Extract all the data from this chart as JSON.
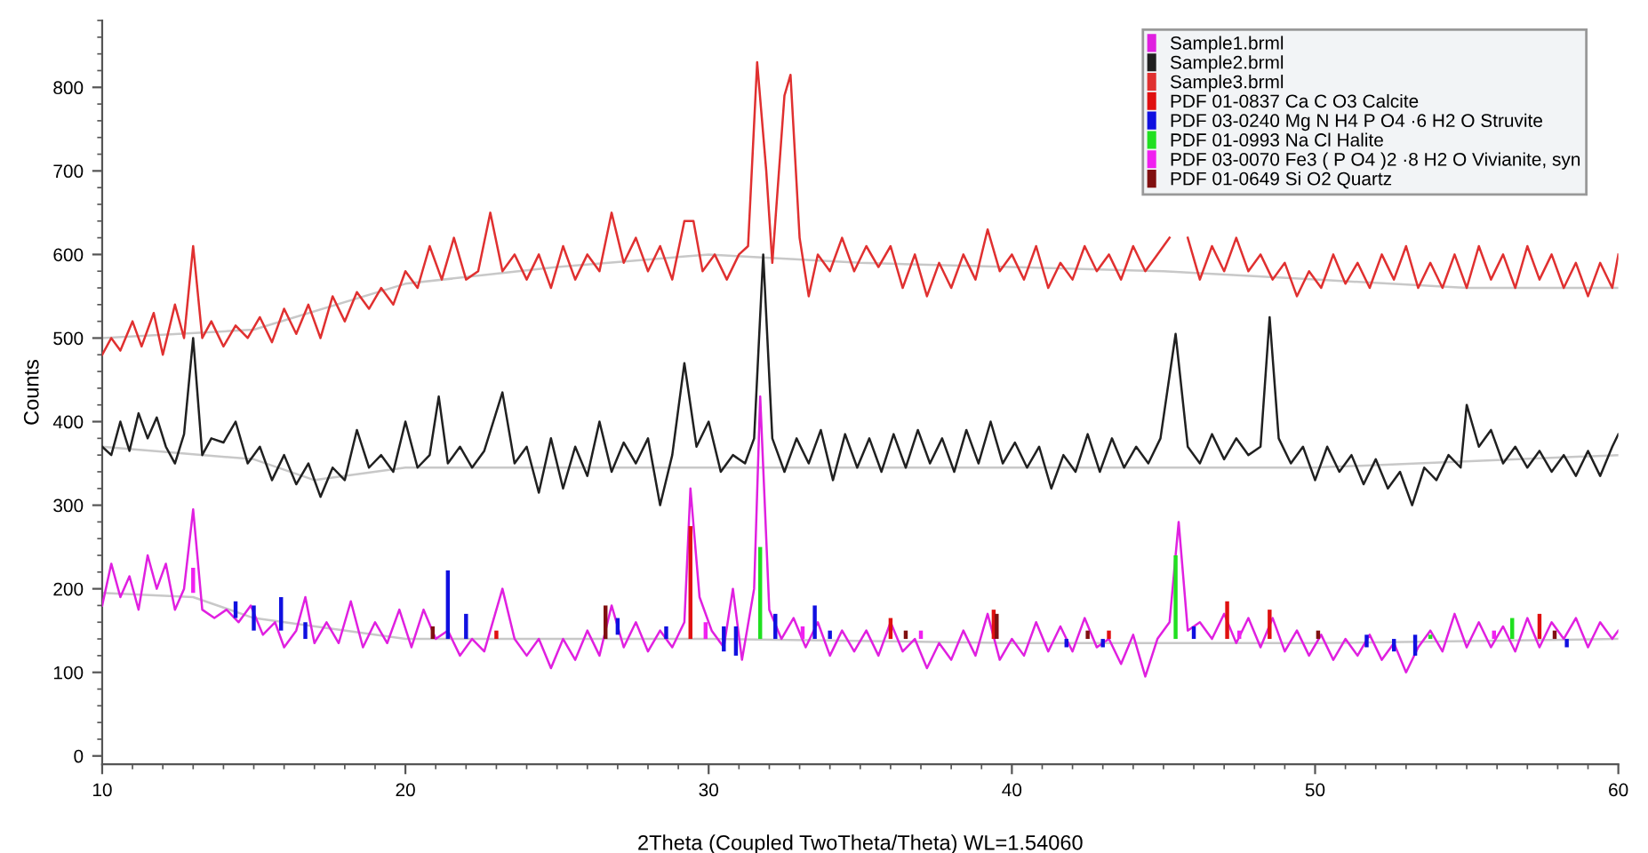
{
  "chart_data": {
    "type": "line",
    "xlabel": "2Theta (Coupled TwoTheta/Theta) WL=1.54060",
    "ylabel": "Counts",
    "xlim": [
      10,
      60
    ],
    "ylim": [
      -10,
      880
    ],
    "xticks": [
      10,
      20,
      30,
      40,
      50,
      60
    ],
    "yticks": [
      0,
      100,
      200,
      300,
      400,
      500,
      600,
      700,
      800
    ],
    "grid": false,
    "legend": "top right",
    "series": [
      {
        "name": "Sample1.brml",
        "color": "#e020e0",
        "x": [
          10,
          10.3,
          10.6,
          10.9,
          11.2,
          11.5,
          11.8,
          12.1,
          12.4,
          12.7,
          13.0,
          13.3,
          13.7,
          14.1,
          14.5,
          14.9,
          15.3,
          15.7,
          16.0,
          16.4,
          16.7,
          17.0,
          17.4,
          17.8,
          18.2,
          18.6,
          19.0,
          19.4,
          19.8,
          20.2,
          20.6,
          21.0,
          21.4,
          21.8,
          22.2,
          22.6,
          23.2,
          23.6,
          24.0,
          24.4,
          24.8,
          25.2,
          25.6,
          26.0,
          26.4,
          26.8,
          27.2,
          27.6,
          28.0,
          28.4,
          28.8,
          29.2,
          29.4,
          29.7,
          30.1,
          30.5,
          30.8,
          31.1,
          31.5,
          31.7,
          32.0,
          32.4,
          32.8,
          33.2,
          33.6,
          34.0,
          34.4,
          34.8,
          35.2,
          35.6,
          36.0,
          36.4,
          36.8,
          37.2,
          37.6,
          38.0,
          38.4,
          38.8,
          39.2,
          39.6,
          40.0,
          40.4,
          40.8,
          41.2,
          41.6,
          42.0,
          42.4,
          42.8,
          43.2,
          43.6,
          44.0,
          44.4,
          44.8,
          45.2,
          45.5,
          45.8,
          46.2,
          46.6,
          47.0,
          47.4,
          47.8,
          48.2,
          48.6,
          49.0,
          49.4,
          49.8,
          50.2,
          50.6,
          51.0,
          51.4,
          51.8,
          52.2,
          52.6,
          53.0,
          53.4,
          53.8,
          54.2,
          54.6,
          55.0,
          55.4,
          55.8,
          56.2,
          56.6,
          57.0,
          57.4,
          57.8,
          58.2,
          58.6,
          59.0,
          59.4,
          59.8,
          60.0
        ],
        "values": [
          180,
          230,
          190,
          215,
          175,
          240,
          200,
          230,
          175,
          200,
          295,
          175,
          165,
          175,
          160,
          180,
          145,
          160,
          130,
          150,
          190,
          135,
          160,
          135,
          185,
          130,
          160,
          135,
          175,
          130,
          175,
          140,
          150,
          120,
          140,
          125,
          200,
          140,
          120,
          140,
          105,
          140,
          115,
          150,
          120,
          180,
          130,
          160,
          125,
          150,
          130,
          160,
          320,
          190,
          150,
          130,
          200,
          115,
          200,
          430,
          175,
          140,
          165,
          130,
          160,
          120,
          150,
          125,
          150,
          120,
          160,
          125,
          140,
          105,
          135,
          115,
          150,
          120,
          170,
          115,
          140,
          120,
          160,
          125,
          155,
          125,
          165,
          130,
          140,
          110,
          145,
          95,
          140,
          160,
          280,
          150,
          160,
          140,
          170,
          135,
          165,
          130,
          165,
          125,
          150,
          120,
          145,
          115,
          140,
          120,
          145,
          115,
          135,
          100,
          130,
          150,
          125,
          170,
          130,
          160,
          130,
          155,
          125,
          165,
          130,
          160,
          140,
          165,
          130,
          160,
          140,
          150
        ]
      },
      {
        "name": "Sample2.brml",
        "color": "#202020",
        "x": [
          10,
          10.3,
          10.6,
          10.9,
          11.2,
          11.5,
          11.8,
          12.1,
          12.4,
          12.7,
          13.0,
          13.3,
          13.6,
          14.0,
          14.4,
          14.8,
          15.2,
          15.6,
          16.0,
          16.4,
          16.8,
          17.2,
          17.6,
          18.0,
          18.4,
          18.8,
          19.2,
          19.6,
          20.0,
          20.4,
          20.8,
          21.1,
          21.4,
          21.8,
          22.2,
          22.6,
          23.2,
          23.6,
          24.0,
          24.4,
          24.8,
          25.2,
          25.6,
          26.0,
          26.4,
          26.8,
          27.2,
          27.6,
          28.0,
          28.4,
          28.8,
          29.2,
          29.6,
          30.0,
          30.4,
          30.8,
          31.2,
          31.5,
          31.8,
          32.1,
          32.5,
          32.9,
          33.3,
          33.7,
          34.1,
          34.5,
          34.9,
          35.3,
          35.7,
          36.1,
          36.5,
          36.9,
          37.3,
          37.7,
          38.1,
          38.5,
          38.9,
          39.3,
          39.7,
          40.1,
          40.5,
          40.9,
          41.3,
          41.7,
          42.1,
          42.5,
          42.9,
          43.3,
          43.7,
          44.1,
          44.5,
          44.9,
          45.4,
          45.8,
          46.2,
          46.6,
          47.0,
          47.4,
          47.8,
          48.2,
          48.5,
          48.8,
          49.2,
          49.6,
          50.0,
          50.4,
          50.8,
          51.2,
          51.6,
          52.0,
          52.4,
          52.8,
          53.2,
          53.6,
          54.0,
          54.4,
          54.8,
          55.0,
          55.4,
          55.8,
          56.2,
          56.6,
          57.0,
          57.4,
          57.8,
          58.2,
          58.6,
          59.0,
          59.4,
          59.8,
          60.0
        ],
        "values": [
          370,
          360,
          400,
          365,
          410,
          380,
          405,
          370,
          350,
          385,
          500,
          360,
          380,
          375,
          400,
          350,
          370,
          330,
          360,
          325,
          350,
          310,
          345,
          330,
          390,
          345,
          360,
          340,
          400,
          345,
          360,
          430,
          350,
          370,
          345,
          365,
          435,
          350,
          370,
          315,
          380,
          320,
          370,
          335,
          400,
          340,
          375,
          350,
          380,
          300,
          360,
          470,
          370,
          400,
          340,
          360,
          350,
          380,
          600,
          380,
          340,
          380,
          350,
          390,
          330,
          385,
          345,
          380,
          340,
          385,
          345,
          390,
          350,
          380,
          340,
          390,
          350,
          400,
          350,
          375,
          345,
          370,
          320,
          360,
          340,
          385,
          340,
          380,
          345,
          370,
          350,
          380,
          505,
          370,
          350,
          385,
          355,
          380,
          360,
          370,
          525,
          380,
          350,
          370,
          330,
          370,
          340,
          360,
          325,
          355,
          320,
          340,
          300,
          345,
          330,
          360,
          345,
          420,
          370,
          390,
          350,
          370,
          345,
          365,
          340,
          360,
          335,
          365,
          335,
          370,
          385
        ]
      },
      {
        "name": "Sample3.brml",
        "color": "#e03030",
        "x": [
          10,
          10.3,
          10.6,
          11.0,
          11.3,
          11.7,
          12.0,
          12.4,
          12.7,
          13.0,
          13.3,
          13.6,
          14.0,
          14.4,
          14.8,
          15.2,
          15.6,
          16.0,
          16.4,
          16.8,
          17.2,
          17.6,
          18.0,
          18.4,
          18.8,
          19.2,
          19.6,
          20.0,
          20.4,
          20.8,
          21.2,
          21.6,
          22.0,
          22.4,
          22.8,
          23.2,
          23.6,
          24.0,
          24.4,
          24.8,
          25.2,
          25.6,
          26.0,
          26.4,
          26.8,
          27.2,
          27.6,
          28.0,
          28.4,
          28.8,
          29.2,
          29.5,
          29.8,
          30.2,
          30.6,
          31.0,
          31.3,
          31.6,
          31.9,
          32.1,
          32.5,
          32.7,
          33.0,
          33.3,
          33.6,
          34.0,
          34.4,
          34.8,
          35.2,
          35.6,
          36.0,
          36.4,
          36.8,
          37.2,
          37.6,
          38.0,
          38.4,
          38.8,
          39.2,
          39.6,
          40.0,
          40.4,
          40.8,
          41.2,
          41.6,
          42.0,
          42.4,
          42.8,
          43.2,
          43.6,
          44.0,
          44.4,
          44.8,
          45.2,
          45.5,
          45.8,
          46.2,
          46.6,
          47.0,
          47.4,
          47.8,
          48.2,
          48.6,
          49.0,
          49.4,
          49.8,
          50.2,
          50.6,
          51.0,
          51.4,
          51.8,
          52.2,
          52.6,
          53.0,
          53.4,
          53.8,
          54.2,
          54.6,
          55.0,
          55.4,
          55.8,
          56.2,
          56.6,
          57.0,
          57.4,
          57.8,
          58.2,
          58.6,
          59.0,
          59.4,
          59.8,
          60.0
        ],
        "values": [
          480,
          500,
          485,
          520,
          490,
          530,
          480,
          540,
          500,
          610,
          500,
          520,
          490,
          515,
          500,
          525,
          495,
          535,
          505,
          540,
          500,
          550,
          520,
          555,
          535,
          560,
          540,
          580,
          560,
          610,
          570,
          620,
          570,
          580,
          650,
          580,
          600,
          570,
          600,
          560,
          610,
          570,
          600,
          580,
          650,
          590,
          620,
          580,
          610,
          570,
          640,
          640,
          580,
          600,
          570,
          600,
          610,
          830,
          700,
          590,
          790,
          815,
          620,
          550,
          600,
          580,
          620,
          580,
          610,
          585,
          610,
          560,
          600,
          550,
          590,
          560,
          600,
          570,
          630,
          580,
          600,
          570,
          610,
          560,
          590,
          570,
          610,
          580,
          600,
          570,
          610,
          580,
          600,
          620,
          null,
          620,
          570,
          610,
          580,
          620,
          580,
          600,
          570,
          590,
          550,
          580,
          560,
          600,
          565,
          590,
          560,
          600,
          570,
          610,
          560,
          590,
          560,
          600,
          560,
          610,
          570,
          600,
          560,
          610,
          570,
          600,
          560,
          590,
          550,
          590,
          560,
          600
        ]
      },
      {
        "color": "#c8c8c8",
        "x": [
          10,
          15,
          20,
          25,
          30,
          35,
          40,
          45,
          50,
          55,
          60
        ],
        "values": [
          500,
          510,
          565,
          585,
          600,
          590,
          585,
          580,
          570,
          560,
          560
        ]
      },
      {
        "color": "#c8c8c8",
        "x": [
          10,
          15,
          17,
          20,
          30,
          40,
          50,
          60
        ],
        "values": [
          370,
          355,
          330,
          345,
          345,
          345,
          345,
          360
        ]
      },
      {
        "color": "#c8c8c8",
        "x": [
          10,
          13,
          15,
          20,
          30,
          40,
          50,
          60
        ],
        "values": [
          195,
          190,
          165,
          140,
          140,
          135,
          135,
          140
        ]
      },
      {
        "name": "PDF 01-0837 Ca C O3 Calcite",
        "type": "bar",
        "color": "#e01010",
        "x": [
          23.0,
          29.4,
          36.0,
          39.4,
          43.2,
          47.1,
          48.5,
          57.4
        ],
        "base": [
          140,
          140,
          140,
          140,
          140,
          140,
          140,
          140
        ],
        "values": [
          10,
          135,
          25,
          35,
          10,
          45,
          35,
          30
        ]
      },
      {
        "name": "PDF 03-0240 Mg N H4 P O4 ·6 H2 O Struvite",
        "type": "bar",
        "color": "#1010e0",
        "x": [
          14.4,
          15.0,
          15.9,
          16.7,
          21.4,
          22.0,
          27.0,
          28.6,
          30.5,
          30.9,
          32.2,
          33.5,
          34.0,
          41.8,
          43.0,
          46.0,
          51.7,
          52.6,
          53.3,
          58.3
        ],
        "base": [
          165,
          150,
          150,
          140,
          140,
          140,
          145,
          140,
          125,
          120,
          140,
          140,
          140,
          130,
          130,
          140,
          130,
          125,
          120,
          130
        ],
        "values": [
          20,
          30,
          40,
          20,
          82,
          30,
          20,
          15,
          30,
          35,
          30,
          40,
          10,
          10,
          10,
          15,
          15,
          15,
          25,
          10
        ]
      },
      {
        "name": "PDF 01-0993 Na Cl Halite",
        "type": "bar",
        "color": "#20e020",
        "x": [
          31.7,
          45.4,
          53.8,
          56.5
        ],
        "base": [
          140,
          140,
          140,
          140
        ],
        "values": [
          110,
          100,
          5,
          25
        ]
      },
      {
        "name": "PDF 03-0070 Fe3 ( P O4 )2 ·8 H2 O Vivianite, syn",
        "type": "bar",
        "color": "#f020f0",
        "x": [
          13.0,
          29.9,
          33.1,
          37.0,
          47.5,
          55.9
        ],
        "base": [
          195,
          140,
          140,
          140,
          140,
          140
        ],
        "values": [
          30,
          20,
          15,
          10,
          10,
          10
        ]
      },
      {
        "name": "PDF 01-0649 Si O2 Quartz",
        "type": "bar",
        "color": "#801010",
        "x": [
          20.9,
          26.6,
          36.5,
          39.5,
          42.5,
          50.1,
          57.9
        ],
        "base": [
          140,
          140,
          140,
          140,
          140,
          140,
          140
        ],
        "values": [
          15,
          40,
          10,
          30,
          10,
          10,
          10
        ]
      }
    ]
  }
}
